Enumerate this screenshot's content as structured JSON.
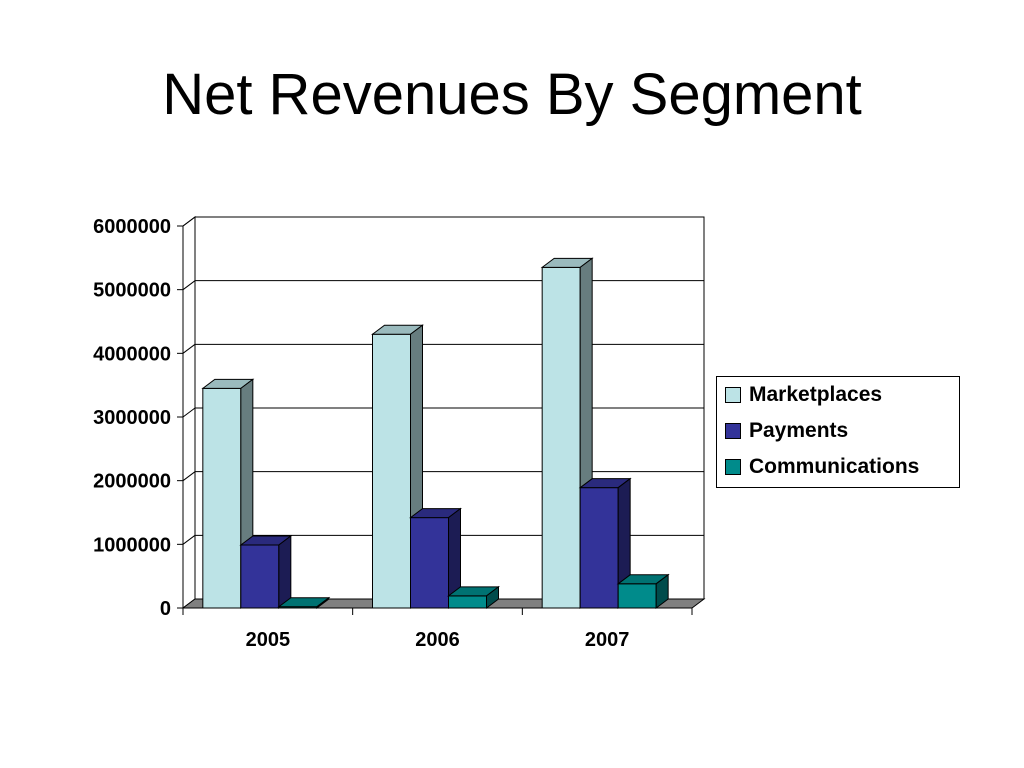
{
  "chart_data": {
    "type": "bar",
    "title": "Net Revenues By Segment",
    "categories": [
      "2005",
      "2006",
      "2007"
    ],
    "series": [
      {
        "name": "Marketplaces",
        "values": [
          3450000,
          4300000,
          5350000
        ],
        "color": "#BCE3E6"
      },
      {
        "name": "Payments",
        "values": [
          990000,
          1420000,
          1890000
        ],
        "color": "#333399"
      },
      {
        "name": "Communications",
        "values": [
          20000,
          190000,
          380000
        ],
        "color": "#008B8B"
      }
    ],
    "ylim": [
      0,
      6000000
    ],
    "yticks": [
      "0",
      "1000000",
      "2000000",
      "3000000",
      "4000000",
      "5000000",
      "6000000"
    ],
    "grid": true,
    "style": "3d-clustered-column",
    "legend_position": "right"
  }
}
